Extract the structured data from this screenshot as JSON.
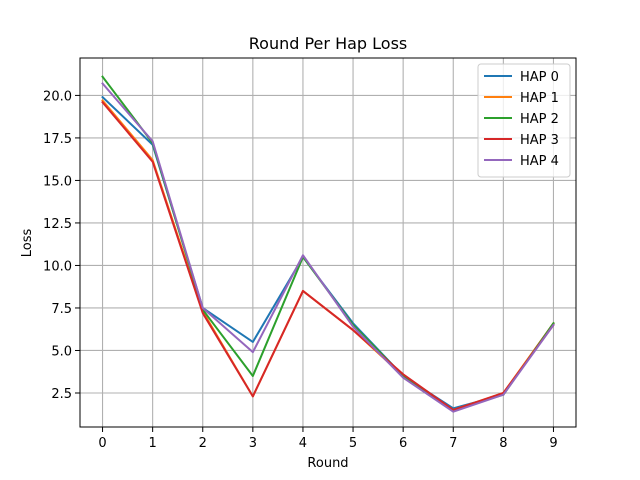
{
  "chart_data": {
    "type": "line",
    "title": "Round Per Hap Loss",
    "xlabel": "Round",
    "ylabel": "Loss",
    "x": [
      0,
      1,
      2,
      3,
      4,
      5,
      6,
      7,
      8,
      9
    ],
    "x_ticks": [
      "0",
      "1",
      "2",
      "3",
      "4",
      "5",
      "6",
      "7",
      "8",
      "9"
    ],
    "y_ticks": [
      "2.5",
      "5.0",
      "7.5",
      "10.0",
      "12.5",
      "15.0",
      "17.5",
      "20.0"
    ],
    "y_tick_values": [
      2.5,
      5.0,
      7.5,
      10.0,
      12.5,
      15.0,
      17.5,
      20.0
    ],
    "xlim": [
      -0.45,
      9.45
    ],
    "ylim": [
      0.5,
      22.2
    ],
    "grid": true,
    "legend_position": "top-right",
    "series": [
      {
        "name": "HAP 0",
        "color": "#1f77b4",
        "values": [
          19.9,
          17.1,
          7.5,
          5.5,
          10.5,
          6.6,
          3.5,
          1.6,
          2.4,
          6.6
        ]
      },
      {
        "name": "HAP 1",
        "color": "#ff7f0e",
        "values": [
          19.7,
          16.2,
          7.3,
          2.3,
          8.5,
          6.2,
          3.5,
          1.5,
          2.5,
          6.6
        ]
      },
      {
        "name": "HAP 2",
        "color": "#2ca02c",
        "values": [
          21.1,
          17.2,
          7.4,
          3.5,
          10.5,
          6.5,
          3.5,
          1.5,
          2.4,
          6.6
        ]
      },
      {
        "name": "HAP 3",
        "color": "#d62728",
        "values": [
          19.6,
          16.1,
          7.2,
          2.3,
          8.5,
          6.2,
          3.6,
          1.5,
          2.5,
          6.5
        ]
      },
      {
        "name": "HAP 4",
        "color": "#9467bd",
        "values": [
          20.7,
          17.3,
          7.5,
          4.9,
          10.6,
          6.4,
          3.4,
          1.4,
          2.4,
          6.5
        ]
      }
    ]
  }
}
